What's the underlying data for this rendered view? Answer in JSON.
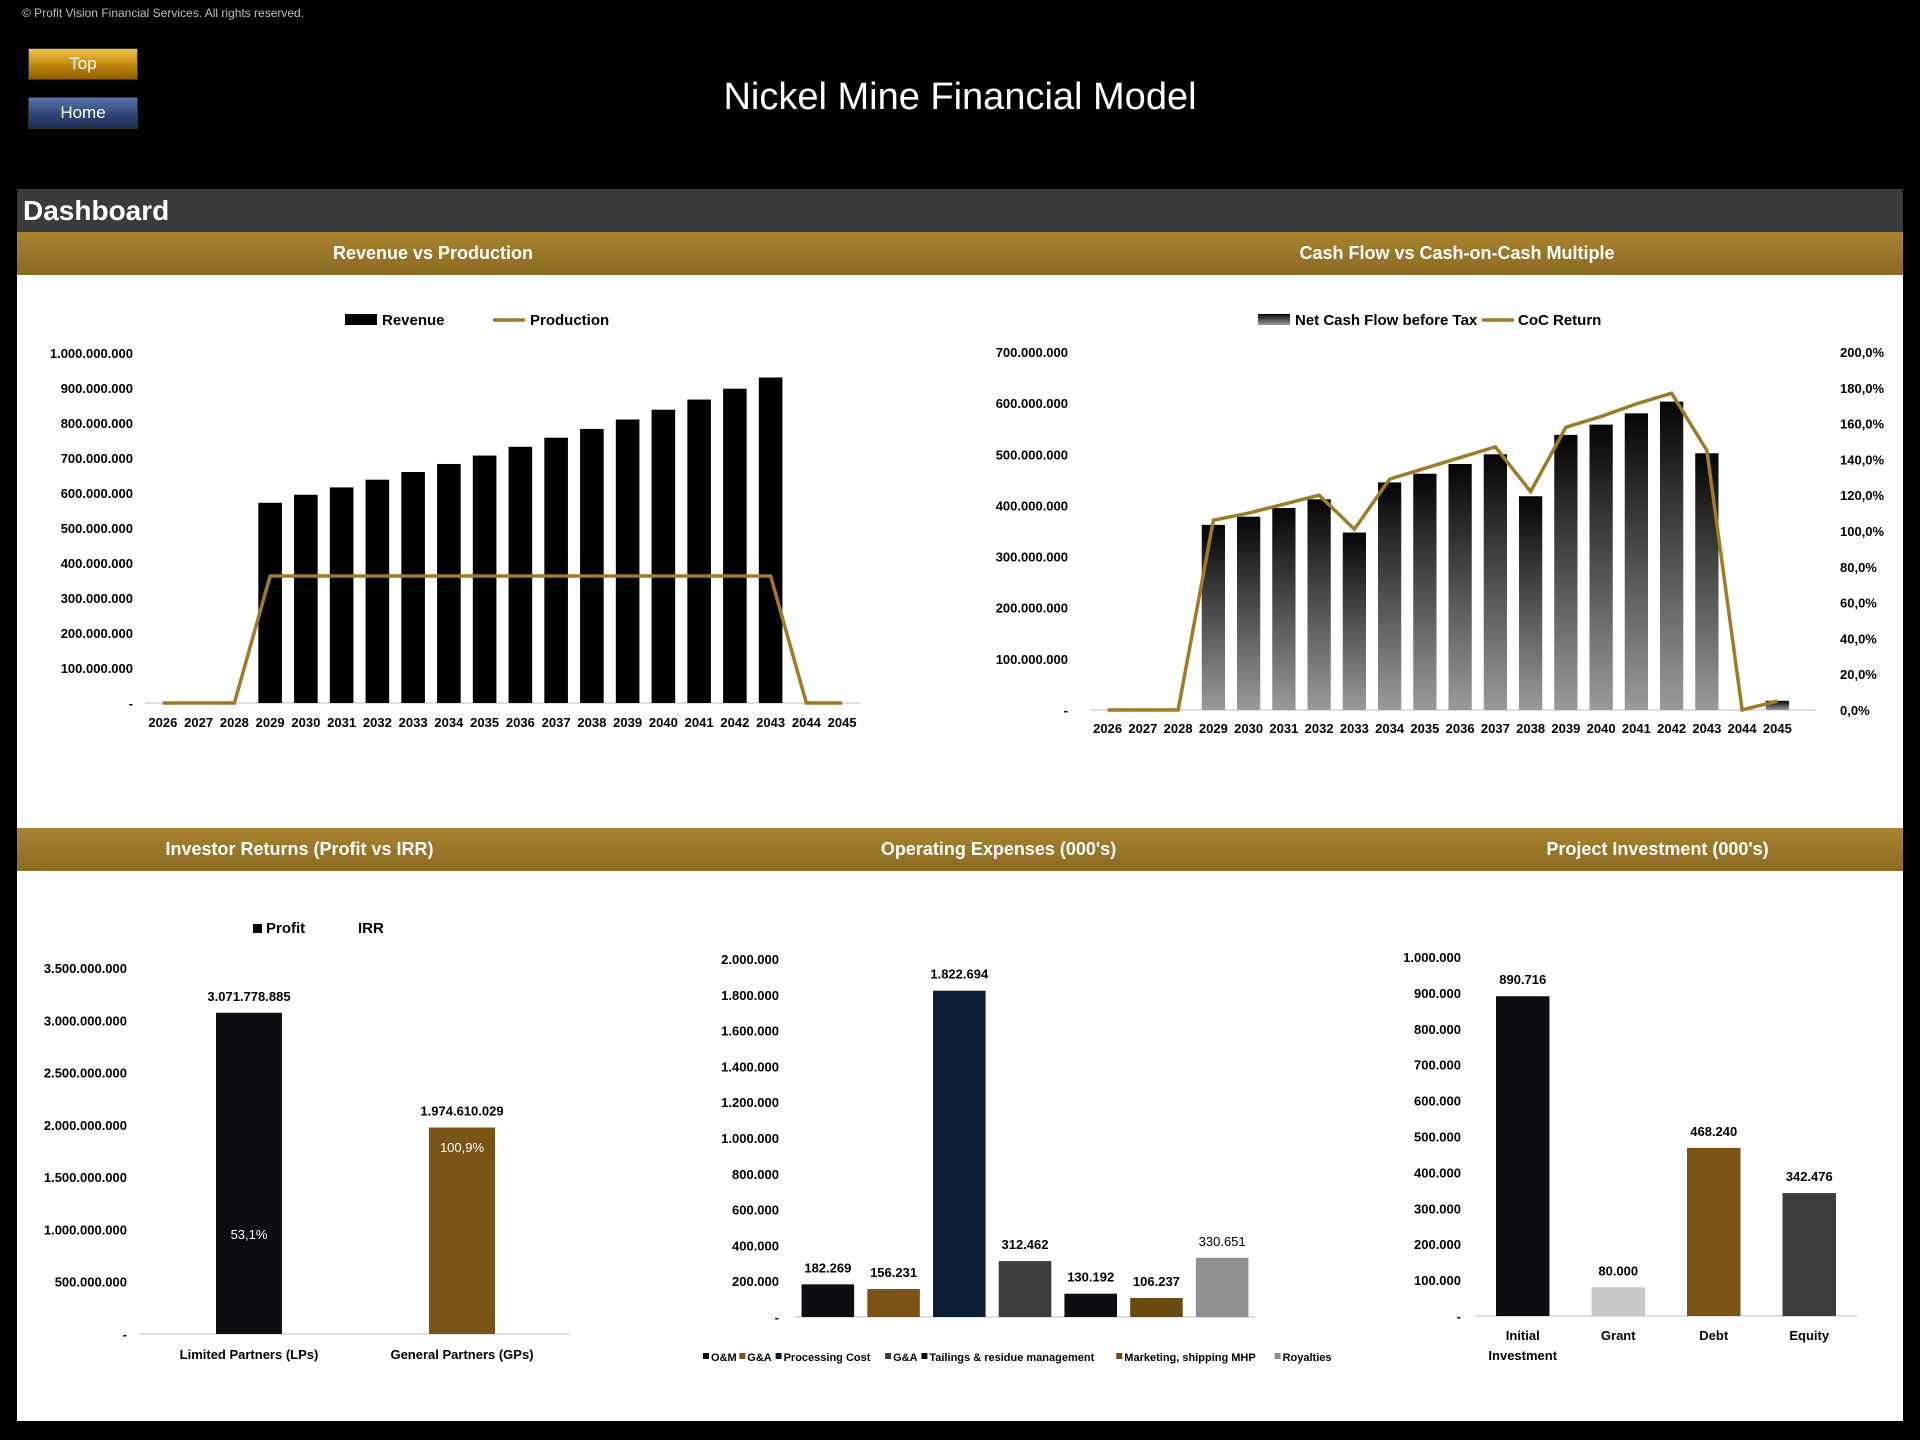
{
  "copyright": "© Profit Vision Financial Services. All rights reserved.",
  "nav": {
    "top_label": "Top",
    "home_label": "Home"
  },
  "title": "Nickel Mine Financial Model",
  "dashboard_label": "Dashboard",
  "colors": {
    "gold": "#a07a26",
    "brown": "#7a5316",
    "navy": "#0b1c33",
    "dark": "#0d0d12",
    "gray": "#8f8f8f",
    "light_gray": "#c8c8c8",
    "mid_gray": "#3c3c3c"
  },
  "section_titles": {
    "revenue": "Revenue vs Production",
    "cashflow": "Cash Flow vs Cash-on-Cash Multiple",
    "investor": "Investor Returns (Profit vs IRR)",
    "opex": "Operating Expenses (000's)",
    "investment": "Project Investment (000's)"
  },
  "chart_data": [
    {
      "id": "revenue",
      "type": "bar",
      "title": "Revenue vs Production",
      "categories": [
        "2026",
        "2027",
        "2028",
        "2029",
        "2030",
        "2031",
        "2032",
        "2033",
        "2034",
        "2035",
        "2036",
        "2037",
        "2038",
        "2039",
        "2040",
        "2041",
        "2042",
        "2043",
        "2044",
        "2045"
      ],
      "series": [
        {
          "name": "Revenue",
          "type": "bar",
          "color": "#000000",
          "values": [
            0,
            0,
            0,
            572000000,
            595000000,
            616000000,
            638000000,
            660000000,
            683000000,
            707000000,
            732000000,
            758000000,
            783000000,
            810000000,
            838000000,
            867000000,
            898000000,
            930000000,
            0,
            0
          ]
        },
        {
          "name": "Production",
          "type": "line",
          "color": "#a07a26",
          "values": [
            0,
            0,
            0,
            1,
            1,
            1,
            1,
            1,
            1,
            1,
            1,
            1,
            1,
            1,
            1,
            1,
            1,
            1,
            0,
            0
          ]
        }
      ],
      "ylim": [
        0,
        1000000000
      ],
      "yticks": [
        "-",
        "100.000.000",
        "200.000.000",
        "300.000.000",
        "400.000.000",
        "500.000.000",
        "600.000.000",
        "700.000.000",
        "800.000.000",
        "900.000.000",
        "1.000.000.000"
      ],
      "legend": "top-center",
      "grid": false
    },
    {
      "id": "cashflow",
      "type": "bar",
      "title": "Cash Flow vs Cash-on-Cash Multiple",
      "categories": [
        "2026",
        "2027",
        "2028",
        "2029",
        "2030",
        "2031",
        "2032",
        "2033",
        "2034",
        "2035",
        "2036",
        "2037",
        "2038",
        "2039",
        "2040",
        "2041",
        "2042",
        "2043",
        "2044",
        "2045"
      ],
      "series": [
        {
          "name": "Net Cash Flow before Tax",
          "type": "bar",
          "axis": "left",
          "values": [
            0,
            0,
            0,
            362000000,
            378000000,
            395000000,
            412000000,
            347000000,
            445000000,
            462000000,
            481000000,
            500000000,
            418000000,
            538000000,
            558000000,
            580000000,
            603000000,
            502000000,
            0,
            18000000
          ]
        },
        {
          "name": "CoC Return",
          "type": "line",
          "axis": "right",
          "color": "#a07a26",
          "values": [
            0,
            0,
            0,
            106,
            110,
            115,
            120,
            101,
            129,
            135,
            141,
            147,
            122,
            158,
            164,
            171,
            177,
            145,
            0,
            5
          ]
        }
      ],
      "ylim_left": [
        0,
        700000000
      ],
      "ylim_right": [
        0,
        200
      ],
      "yticks_left": [
        "-",
        "100.000.000",
        "200.000.000",
        "300.000.000",
        "400.000.000",
        "500.000.000",
        "600.000.000",
        "700.000.000"
      ],
      "yticks_right": [
        "0,0%",
        "20,0%",
        "40,0%",
        "60,0%",
        "80,0%",
        "100,0%",
        "120,0%",
        "140,0%",
        "160,0%",
        "180,0%",
        "200,0%"
      ],
      "legend": "top-center",
      "grid": false
    },
    {
      "id": "investor",
      "type": "bar",
      "title": "Investor Returns (Profit vs IRR)",
      "categories": [
        "Limited Partners (LPs)",
        "General Partners (GPs)"
      ],
      "series": [
        {
          "name": "Profit",
          "values": [
            3071778885,
            1974610029
          ],
          "labels": [
            "3.071.778.885",
            "1.974.610.029"
          ]
        },
        {
          "name": "IRR",
          "values": [
            53.1,
            100.9
          ],
          "labels": [
            "53,1%",
            "100,9%"
          ]
        }
      ],
      "colors": [
        "#0d0d12",
        "#7a5316"
      ],
      "ylim": [
        0,
        3500000000
      ],
      "yticks": [
        "-",
        "500.000.000",
        "1.000.000.000",
        "1.500.000.000",
        "2.000.000.000",
        "2.500.000.000",
        "3.000.000.000",
        "3.500.000.000"
      ],
      "legend": "top"
    },
    {
      "id": "opex",
      "type": "bar",
      "title": "Operating Expenses (000's)",
      "categories": [
        "O&M",
        "G&A",
        "Processing Cost",
        "G&A",
        "Tailings & residue management",
        "Marketing, shipping MHP",
        "Royalties"
      ],
      "values": [
        182269,
        156231,
        1822694,
        312462,
        130192,
        106237,
        330651
      ],
      "labels": [
        "182.269",
        "156.231",
        "1.822.694",
        "312.462",
        "130.192",
        "106.237",
        "330.651"
      ],
      "colors": [
        "#0d0d12",
        "#7a5316",
        "#0b1c33",
        "#3c3c3c",
        "#0d0d12",
        "#6b4a12",
        "#8f8f8f"
      ],
      "ylim": [
        0,
        2000000
      ],
      "yticks": [
        "-",
        "200.000",
        "400.000",
        "600.000",
        "800.000",
        "1.000.000",
        "1.200.000",
        "1.400.000",
        "1.600.000",
        "1.800.000",
        "2.000.000"
      ],
      "legend": "bottom"
    },
    {
      "id": "investment",
      "type": "bar",
      "title": "Project Investment (000's)",
      "categories": [
        "Initial Investment",
        "Grant",
        "Debt",
        "Equity"
      ],
      "values": [
        890716,
        80000,
        468240,
        342476
      ],
      "labels": [
        "890.716",
        "80.000",
        "468.240",
        "342.476"
      ],
      "colors": [
        "#0d0d12",
        "#c8c8c8",
        "#7a5316",
        "#3c3c3c"
      ],
      "ylim": [
        0,
        1000000
      ],
      "yticks": [
        "-",
        "100.000",
        "200.000",
        "300.000",
        "400.000",
        "500.000",
        "600.000",
        "700.000",
        "800.000",
        "900.000",
        "1.000.000"
      ]
    }
  ]
}
